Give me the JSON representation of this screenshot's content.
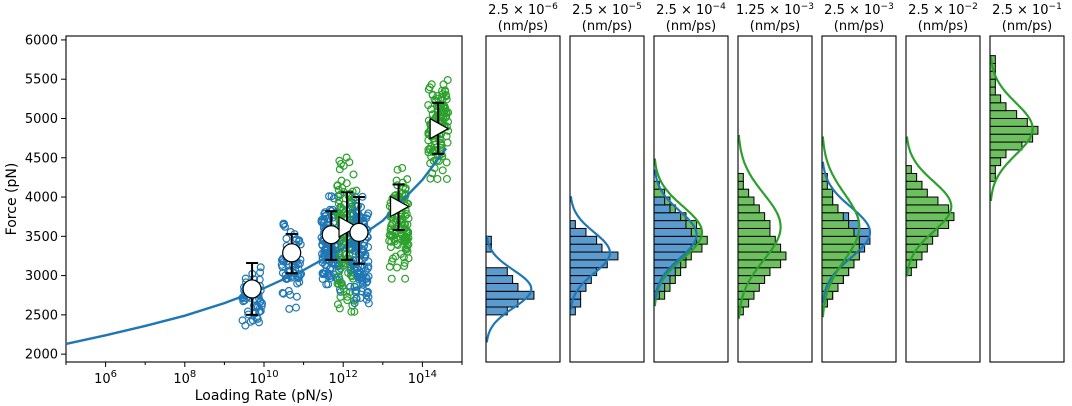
{
  "chart_data": [
    {
      "type": "scatter",
      "xlabel": "Loading Rate (pN/s)",
      "ylabel": "Force (pN)",
      "xscale": "log",
      "xlim": [
        100000,
        1000000000000000
      ],
      "ylim": [
        1900,
        6050
      ],
      "x_tick_labels": [
        "10^6",
        "10^8",
        "10^10",
        "10^12",
        "10^14"
      ],
      "y_ticks": [
        2000,
        2500,
        3000,
        3500,
        4000,
        4500,
        5000,
        5500,
        6000
      ],
      "grid": false,
      "legend": null,
      "colors": {
        "blue": "#1f77b4",
        "green": "#2ca02c"
      },
      "model_curve": {
        "color": "#1f77b4",
        "x": [
          100000,
          1000000,
          10000000,
          100000000,
          1000000000,
          10000000000,
          100000000000,
          1000000000000,
          10000000000000,
          100000000000000,
          400000000000000
        ],
        "y": [
          2130,
          2240,
          2360,
          2490,
          2650,
          2840,
          3070,
          3350,
          3700,
          4220,
          4620
        ]
      },
      "groups": [
        {
          "color": "blue",
          "loading_rate": 5000000000,
          "mean": 2830,
          "err_low": 2500,
          "err_high": 3160,
          "spread_low": 2330,
          "spread_high": 3150,
          "n": 60,
          "marker": "circle"
        },
        {
          "color": "blue",
          "loading_rate": 50000000000,
          "mean": 3290,
          "err_low": 3030,
          "err_high": 3530,
          "spread_low": 2560,
          "spread_high": 3660,
          "n": 60,
          "marker": "circle"
        },
        {
          "color": "blue",
          "loading_rate": 500000000000,
          "mean": 3520,
          "err_low": 3200,
          "err_high": 3820,
          "spread_low": 2740,
          "spread_high": 4010,
          "n": 140,
          "marker": "circle"
        },
        {
          "color": "green",
          "loading_rate": 1250000000000,
          "mean": 3620,
          "err_low": 3200,
          "err_high": 4060,
          "spread_low": 2540,
          "spread_high": 4510,
          "n": 150,
          "marker": "triangle"
        },
        {
          "color": "blue",
          "loading_rate": 2500000000000,
          "mean": 3550,
          "err_low": 3150,
          "err_high": 4000,
          "spread_low": 2580,
          "spread_high": 4050,
          "n": 120,
          "marker": "circle"
        },
        {
          "color": "green",
          "loading_rate": 25000000000000,
          "mean": 3880,
          "err_low": 3580,
          "err_high": 4160,
          "spread_low": 2960,
          "spread_high": 4370,
          "n": 120,
          "marker": "triangle"
        },
        {
          "color": "green",
          "loading_rate": 250000000000000,
          "mean": 4870,
          "err_low": 4550,
          "err_high": 5200,
          "spread_low": 4230,
          "spread_high": 5520,
          "n": 130,
          "marker": "triangle"
        }
      ]
    },
    {
      "type": "histograms",
      "ylim": [
        1900,
        6050
      ],
      "bin_width": 100,
      "panels": [
        {
          "title_base": "2.5 × 10",
          "title_exp": "−6",
          "title_unit": "(nm/ps)",
          "color": "blue",
          "bins": [
            {
              "f": 2550,
              "c": 4
            },
            {
              "f": 2650,
              "c": 6
            },
            {
              "f": 2750,
              "c": 9
            },
            {
              "f": 2850,
              "c": 6
            },
            {
              "f": 2950,
              "c": 5
            },
            {
              "f": 3050,
              "c": 4
            },
            {
              "f": 3350,
              "c": 1
            },
            {
              "f": 3450,
              "c": 1
            }
          ],
          "fits": [
            {
              "color": "blue",
              "mean": 2830,
              "sd": 240,
              "peak": 8.5
            }
          ]
        },
        {
          "title_base": "2.5 × 10",
          "title_exp": "−5",
          "title_unit": "(nm/ps)",
          "color": "blue",
          "bins": [
            {
              "f": 2550,
              "c": 1
            },
            {
              "f": 2650,
              "c": 2
            },
            {
              "f": 2750,
              "c": 2
            },
            {
              "f": 2850,
              "c": 3
            },
            {
              "f": 2950,
              "c": 4
            },
            {
              "f": 3050,
              "c": 5
            },
            {
              "f": 3150,
              "c": 7
            },
            {
              "f": 3250,
              "c": 9
            },
            {
              "f": 3350,
              "c": 6
            },
            {
              "f": 3450,
              "c": 5
            },
            {
              "f": 3550,
              "c": 3
            },
            {
              "f": 3650,
              "c": 1
            }
          ],
          "fits": [
            {
              "color": "blue",
              "mean": 3290,
              "sd": 260,
              "peak": 7.5
            }
          ]
        },
        {
          "title_base": "2.5 × 10",
          "title_exp": "−4",
          "title_unit": "(nm/ps)",
          "color": "green",
          "bins": [
            {
              "f": 2750,
              "c": 2
            },
            {
              "f": 2850,
              "c": 3
            },
            {
              "f": 2950,
              "c": 4
            },
            {
              "f": 3050,
              "c": 5
            },
            {
              "f": 3150,
              "c": 6
            },
            {
              "f": 3250,
              "c": 7
            },
            {
              "f": 3350,
              "c": 9
            },
            {
              "f": 3450,
              "c": 10
            },
            {
              "f": 3550,
              "c": 9
            },
            {
              "f": 3650,
              "c": 8
            },
            {
              "f": 3750,
              "c": 6
            },
            {
              "f": 3850,
              "c": 4
            },
            {
              "f": 3950,
              "c": 3
            },
            {
              "f": 4050,
              "c": 2
            },
            {
              "f": 4150,
              "c": 1
            }
          ],
          "overlay": [
            {
              "f": 2750,
              "c": 1
            },
            {
              "f": 2850,
              "c": 2
            },
            {
              "f": 2950,
              "c": 3
            },
            {
              "f": 3050,
              "c": 4
            },
            {
              "f": 3150,
              "c": 5
            },
            {
              "f": 3250,
              "c": 6
            },
            {
              "f": 3350,
              "c": 7
            },
            {
              "f": 3450,
              "c": 8
            },
            {
              "f": 3550,
              "c": 7
            },
            {
              "f": 3650,
              "c": 6
            },
            {
              "f": 3750,
              "c": 5
            },
            {
              "f": 3850,
              "c": 3
            },
            {
              "f": 3950,
              "c": 2
            }
          ],
          "fits": [
            {
              "color": "green",
              "mean": 3550,
              "sd": 330,
              "peak": 9
            },
            {
              "color": "blue",
              "mean": 3520,
              "sd": 300,
              "peak": 8
            }
          ]
        },
        {
          "title_base": "1.25 × 10",
          "title_exp": "−3",
          "title_unit": "(nm/ps)",
          "color": "green",
          "bins": [
            {
              "f": 2550,
              "c": 1
            },
            {
              "f": 2650,
              "c": 2
            },
            {
              "f": 2750,
              "c": 3
            },
            {
              "f": 2850,
              "c": 4
            },
            {
              "f": 2950,
              "c": 5
            },
            {
              "f": 3050,
              "c": 6
            },
            {
              "f": 3150,
              "c": 8
            },
            {
              "f": 3250,
              "c": 9
            },
            {
              "f": 3350,
              "c": 8
            },
            {
              "f": 3450,
              "c": 7
            },
            {
              "f": 3550,
              "c": 6
            },
            {
              "f": 3650,
              "c": 6
            },
            {
              "f": 3750,
              "c": 5
            },
            {
              "f": 3850,
              "c": 4
            },
            {
              "f": 3950,
              "c": 3
            },
            {
              "f": 4050,
              "c": 2
            },
            {
              "f": 4150,
              "c": 1
            },
            {
              "f": 4250,
              "c": 1
            }
          ],
          "fits": [
            {
              "color": "green",
              "mean": 3620,
              "sd": 420,
              "peak": 8
            }
          ]
        },
        {
          "title_base": "2.5 × 10",
          "title_exp": "−3",
          "title_unit": "(nm/ps)",
          "color": "blue",
          "bins": [
            {
              "f": 2650,
              "c": 1
            },
            {
              "f": 2750,
              "c": 2
            },
            {
              "f": 2850,
              "c": 3
            },
            {
              "f": 2950,
              "c": 4
            },
            {
              "f": 3050,
              "c": 5
            },
            {
              "f": 3150,
              "c": 6
            },
            {
              "f": 3250,
              "c": 7
            },
            {
              "f": 3350,
              "c": 8
            },
            {
              "f": 3450,
              "c": 9
            },
            {
              "f": 3550,
              "c": 9
            },
            {
              "f": 3650,
              "c": 7
            },
            {
              "f": 3750,
              "c": 5
            },
            {
              "f": 3850,
              "c": 3
            },
            {
              "f": 3950,
              "c": 2
            },
            {
              "f": 4050,
              "c": 1
            }
          ],
          "overlay": [
            {
              "f": 2650,
              "c": 1
            },
            {
              "f": 2750,
              "c": 2
            },
            {
              "f": 2850,
              "c": 3
            },
            {
              "f": 2950,
              "c": 4
            },
            {
              "f": 3050,
              "c": 5
            },
            {
              "f": 3150,
              "c": 6
            },
            {
              "f": 3250,
              "c": 7
            },
            {
              "f": 3350,
              "c": 7
            },
            {
              "f": 3450,
              "c": 7
            },
            {
              "f": 3550,
              "c": 6
            },
            {
              "f": 3650,
              "c": 5
            },
            {
              "f": 3750,
              "c": 4
            },
            {
              "f": 3850,
              "c": 3
            },
            {
              "f": 3950,
              "c": 2
            },
            {
              "f": 4050,
              "c": 2
            },
            {
              "f": 4150,
              "c": 1
            },
            {
              "f": 4250,
              "c": 1
            }
          ],
          "fits": [
            {
              "color": "blue",
              "mean": 3550,
              "sd": 320,
              "peak": 9
            },
            {
              "color": "green",
              "mean": 3620,
              "sd": 420,
              "peak": 7
            }
          ]
        },
        {
          "title_base": "2.5 × 10",
          "title_exp": "−2",
          "title_unit": "(nm/ps)",
          "color": "green",
          "bins": [
            {
              "f": 3050,
              "c": 1
            },
            {
              "f": 3150,
              "c": 2
            },
            {
              "f": 3250,
              "c": 3
            },
            {
              "f": 3350,
              "c": 4
            },
            {
              "f": 3450,
              "c": 5
            },
            {
              "f": 3550,
              "c": 6
            },
            {
              "f": 3650,
              "c": 8
            },
            {
              "f": 3750,
              "c": 9
            },
            {
              "f": 3850,
              "c": 8
            },
            {
              "f": 3950,
              "c": 6
            },
            {
              "f": 4050,
              "c": 4
            },
            {
              "f": 4150,
              "c": 3
            },
            {
              "f": 4250,
              "c": 2
            },
            {
              "f": 4350,
              "c": 1
            }
          ],
          "fits": [
            {
              "color": "green",
              "mean": 3880,
              "sd": 320,
              "peak": 8.5
            }
          ]
        },
        {
          "title_base": "2.5 × 10",
          "title_exp": "−1",
          "title_unit": "(nm/ps)",
          "color": "green",
          "bins": [
            {
              "f": 4250,
              "c": 1
            },
            {
              "f": 4350,
              "c": 1
            },
            {
              "f": 4450,
              "c": 2
            },
            {
              "f": 4550,
              "c": 3
            },
            {
              "f": 4650,
              "c": 6
            },
            {
              "f": 4750,
              "c": 8
            },
            {
              "f": 4850,
              "c": 9
            },
            {
              "f": 4950,
              "c": 7
            },
            {
              "f": 5050,
              "c": 5
            },
            {
              "f": 5150,
              "c": 3
            },
            {
              "f": 5250,
              "c": 2
            },
            {
              "f": 5350,
              "c": 1
            },
            {
              "f": 5450,
              "c": 1
            },
            {
              "f": 5550,
              "c": 1
            },
            {
              "f": 5650,
              "c": 1
            },
            {
              "f": 5750,
              "c": 1
            }
          ],
          "fits": [
            {
              "color": "green",
              "mean": 4870,
              "sd": 330,
              "peak": 8
            }
          ]
        }
      ]
    }
  ]
}
